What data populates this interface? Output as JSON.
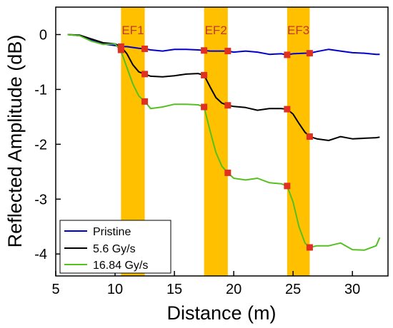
{
  "chart_data": {
    "type": "line",
    "xlabel": "Distance (m)",
    "ylabel": "Reflected Amplitude (dB)",
    "xlim": [
      5,
      33
    ],
    "ylim": [
      -4.4,
      0.5
    ],
    "xticks": [
      5,
      10,
      15,
      20,
      25,
      30
    ],
    "yticks": [
      0,
      -1,
      -2,
      -3,
      -4
    ],
    "legend_position": "bottom-left",
    "grid": false,
    "bands": [
      {
        "label": "EF1",
        "x_start": 10.5,
        "x_end": 12.5
      },
      {
        "label": "EF2",
        "x_start": 17.5,
        "x_end": 19.5
      },
      {
        "label": "EF3",
        "x_start": 24.5,
        "x_end": 26.4
      }
    ],
    "band_color": "#FFC000",
    "band_label_color": "#C0392B",
    "marker_color": "#E03020",
    "series": [
      {
        "name": "Pristine",
        "color": "#0000CC",
        "x": [
          6,
          7,
          8,
          9,
          10,
          10.5,
          11,
          12,
          12.5,
          13,
          14,
          15,
          16,
          17,
          17.5,
          18,
          19,
          19.5,
          20,
          21,
          22,
          23,
          24,
          24.5,
          25,
          26,
          26.4,
          27,
          28,
          29,
          30,
          31,
          32,
          32.3
        ],
        "y": [
          0,
          -0.02,
          -0.1,
          -0.17,
          -0.2,
          -0.22,
          -0.22,
          -0.25,
          -0.26,
          -0.28,
          -0.3,
          -0.27,
          -0.27,
          -0.28,
          -0.29,
          -0.3,
          -0.3,
          -0.3,
          -0.32,
          -0.3,
          -0.32,
          -0.36,
          -0.35,
          -0.37,
          -0.35,
          -0.34,
          -0.34,
          -0.31,
          -0.27,
          -0.3,
          -0.33,
          -0.34,
          -0.36,
          -0.36
        ]
      },
      {
        "name": "5.6 Gy/s",
        "color": "#000000",
        "x": [
          6,
          7,
          8,
          9,
          10,
          10.5,
          11,
          11.5,
          12,
          12.5,
          13,
          14,
          15,
          16,
          17,
          17.5,
          18,
          18.5,
          19,
          19.5,
          20,
          21,
          22,
          23,
          24,
          24.5,
          25,
          25.5,
          26,
          26.4,
          27,
          28,
          29,
          30,
          31,
          32,
          32.3
        ],
        "y": [
          0,
          -0.01,
          -0.08,
          -0.15,
          -0.17,
          -0.22,
          -0.35,
          -0.55,
          -0.68,
          -0.72,
          -0.76,
          -0.77,
          -0.75,
          -0.72,
          -0.71,
          -0.74,
          -0.95,
          -1.15,
          -1.25,
          -1.29,
          -1.31,
          -1.33,
          -1.38,
          -1.35,
          -1.35,
          -1.36,
          -1.45,
          -1.62,
          -1.78,
          -1.86,
          -1.9,
          -1.93,
          -1.86,
          -1.9,
          -1.89,
          -1.88,
          -1.87
        ]
      },
      {
        "name": "16.84 Gy/s",
        "color": "#55C020",
        "x": [
          6,
          7,
          8,
          9,
          10,
          10.5,
          11,
          11.5,
          12,
          12.5,
          13,
          14,
          15,
          16,
          17,
          17.5,
          18,
          18.5,
          19,
          19.5,
          20,
          21,
          22,
          23,
          24,
          24.5,
          25,
          25.5,
          26,
          26.4,
          27,
          28,
          29,
          30,
          31,
          32,
          32.3
        ],
        "y": [
          0,
          -0.02,
          -0.12,
          -0.18,
          -0.17,
          -0.3,
          -0.6,
          -0.9,
          -1.12,
          -1.22,
          -1.35,
          -1.32,
          -1.27,
          -1.27,
          -1.28,
          -1.32,
          -1.75,
          -2.15,
          -2.4,
          -2.52,
          -2.62,
          -2.65,
          -2.62,
          -2.7,
          -2.72,
          -2.76,
          -3.05,
          -3.5,
          -3.8,
          -3.88,
          -3.85,
          -3.85,
          -3.8,
          -3.92,
          -3.93,
          -3.85,
          -3.7
        ]
      }
    ],
    "markers": [
      {
        "x": 10.5,
        "y": -0.22
      },
      {
        "x": 12.5,
        "y": -0.26
      },
      {
        "x": 17.5,
        "y": -0.29
      },
      {
        "x": 19.5,
        "y": -0.3
      },
      {
        "x": 24.5,
        "y": -0.37
      },
      {
        "x": 26.4,
        "y": -0.34
      },
      {
        "x": 10.5,
        "y": -0.28
      },
      {
        "x": 12.5,
        "y": -0.72
      },
      {
        "x": 17.5,
        "y": -0.74
      },
      {
        "x": 19.5,
        "y": -1.29
      },
      {
        "x": 24.5,
        "y": -1.36
      },
      {
        "x": 26.4,
        "y": -1.86
      },
      {
        "x": 12.5,
        "y": -1.22
      },
      {
        "x": 17.5,
        "y": -1.32
      },
      {
        "x": 19.5,
        "y": -2.52
      },
      {
        "x": 24.5,
        "y": -2.76
      },
      {
        "x": 26.4,
        "y": -3.88
      }
    ]
  }
}
